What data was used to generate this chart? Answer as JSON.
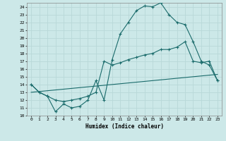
{
  "xlabel": "Humidex (Indice chaleur)",
  "ylabel": "",
  "bg_color": "#cce8e8",
  "grid_color": "#b8d8d8",
  "line_color": "#1a6b6b",
  "xlim": [
    -0.5,
    23.5
  ],
  "ylim": [
    10,
    24.5
  ],
  "yticks": [
    10,
    11,
    12,
    13,
    14,
    15,
    16,
    17,
    18,
    19,
    20,
    21,
    22,
    23,
    24
  ],
  "xticks": [
    0,
    1,
    2,
    3,
    4,
    5,
    6,
    7,
    8,
    9,
    10,
    11,
    12,
    13,
    14,
    15,
    16,
    17,
    18,
    19,
    20,
    21,
    22,
    23
  ],
  "line1_x": [
    0,
    1,
    2,
    3,
    4,
    5,
    6,
    7,
    8,
    9,
    10,
    11,
    12,
    13,
    14,
    15,
    16,
    17,
    18,
    19,
    20,
    21,
    22,
    23
  ],
  "line1_y": [
    14.0,
    13.0,
    12.5,
    10.5,
    11.5,
    11.0,
    11.2,
    12.0,
    14.5,
    12.0,
    17.2,
    20.5,
    22.0,
    23.5,
    24.1,
    24.0,
    24.5,
    23.0,
    22.0,
    21.7,
    19.5,
    17.0,
    16.5,
    14.5
  ],
  "line2_x": [
    0,
    1,
    2,
    3,
    4,
    5,
    6,
    7,
    8,
    9,
    10,
    11,
    12,
    13,
    14,
    15,
    16,
    17,
    18,
    19,
    20,
    21,
    22,
    23
  ],
  "line2_y": [
    14.0,
    13.0,
    12.5,
    12.0,
    11.8,
    12.0,
    12.2,
    12.5,
    13.0,
    17.0,
    16.5,
    16.8,
    17.2,
    17.5,
    17.8,
    18.0,
    18.5,
    18.5,
    18.8,
    19.5,
    17.0,
    16.8,
    17.0,
    14.5
  ],
  "line3_x": [
    0,
    1,
    2,
    3,
    4,
    5,
    6,
    7,
    8,
    9,
    10,
    11,
    12,
    13,
    14,
    15,
    16,
    17,
    18,
    19,
    20,
    21,
    22,
    23
  ],
  "line3_y": [
    13.0,
    13.1,
    13.2,
    13.3,
    13.4,
    13.5,
    13.6,
    13.7,
    13.8,
    13.9,
    14.0,
    14.1,
    14.2,
    14.3,
    14.4,
    14.5,
    14.6,
    14.7,
    14.8,
    14.9,
    15.0,
    15.1,
    15.2,
    15.3
  ]
}
